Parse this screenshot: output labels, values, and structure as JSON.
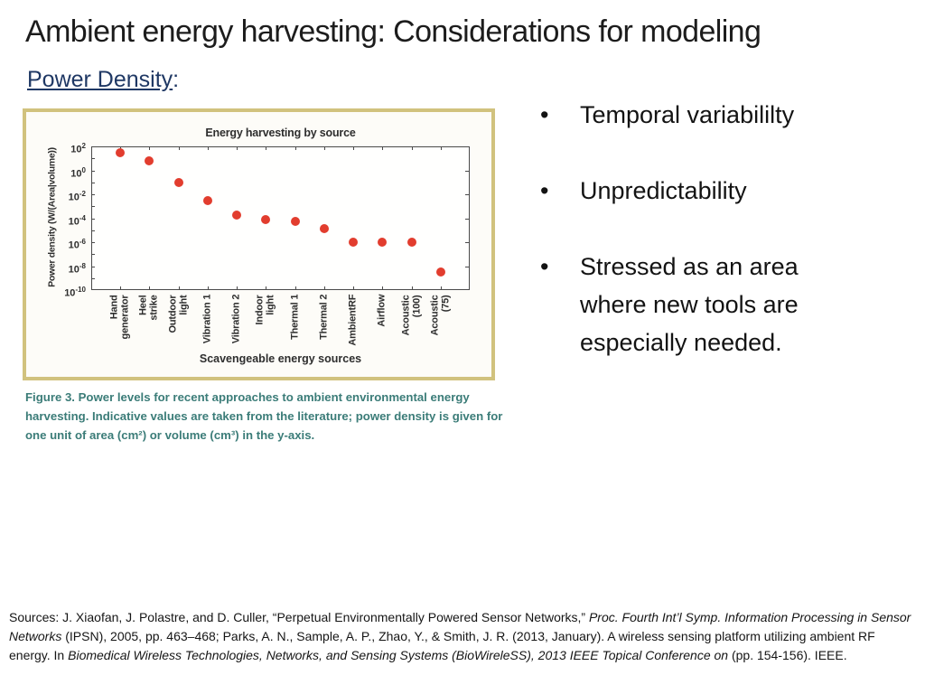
{
  "slide": {
    "title": "Ambient energy harvesting: Considerations for modeling",
    "subtitle": "Power Density",
    "subtitle_colon": ":",
    "bullet_glyph": "•"
  },
  "bullets": [
    "Temporal variabililty",
    "Unpredictability",
    "Stressed as an area where new tools are especially needed."
  ],
  "figure": {
    "caption": "Figure 3. Power levels for recent approaches to ambient environmental energy harvesting. Indicative values are taken from the literature; power density is given for one unit of area (cm²) or volume (cm³) in the y-axis.",
    "border_color": "#d1c27e",
    "caption_color": "#3b7c78"
  },
  "chart_data": {
    "type": "scatter",
    "title": "Energy harvesting by source",
    "xlabel": "Scavengeable energy sources",
    "ylabel": "Power density (W/(Area|volume))",
    "y_scale": "log",
    "ylim": [
      1e-10,
      100
    ],
    "y_tick_exponents": [
      2,
      0,
      -2,
      -4,
      -6,
      -8,
      -10
    ],
    "grid": false,
    "legend": "none",
    "point_color": "#e23d2e",
    "frame_color": "#4a4a4a",
    "categories": [
      "Hand generator",
      "Heel strike",
      "Outdoor light",
      "Vibration 1",
      "Vibration 2",
      "Indoor light",
      "Thermal 1",
      "Thermal 2",
      "AmbientRF",
      "Airflow",
      "Acoustic (100)",
      "Acoustic (75)"
    ],
    "category_label_lines": [
      [
        "Hand",
        "generator"
      ],
      [
        "Heel",
        "strike"
      ],
      [
        "Outdoor",
        "light"
      ],
      [
        "Vibration 1"
      ],
      [
        "Vibration 2"
      ],
      [
        "Indoor",
        "light"
      ],
      [
        "Thermal 1"
      ],
      [
        "Thermal 2"
      ],
      [
        "AmbientRF"
      ],
      [
        "Airflow"
      ],
      [
        "Acoustic",
        "(100)"
      ],
      [
        "Acoustic",
        "(75)"
      ]
    ],
    "values": [
      30,
      6,
      0.1,
      0.003,
      0.0002,
      8e-05,
      5e-05,
      1.3e-05,
      1e-06,
      1e-06,
      1e-06,
      3e-09
    ]
  },
  "sources": {
    "segments": [
      {
        "text": "Sources: J. Xiaofan, J. Polastre, and D. Culler, “Perpetual Environmentally Powered Sensor Networks,” ",
        "italic": false
      },
      {
        "text": "Proc. Fourth Int’l Symp. Information Processing in Sensor Networks",
        "italic": true
      },
      {
        "text": " (IPSN), 2005, pp. 463–468; Parks, A. N., Sample, A. P., Zhao, Y., & Smith, J. R. (2013, January). A wireless sensing platform utilizing ambient RF energy. In ",
        "italic": false
      },
      {
        "text": "Biomedical Wireless Technologies, Networks, and Sensing Systems (BioWireleSS), 2013 IEEE Topical Conference on",
        "italic": true
      },
      {
        "text": " (pp. 154-156). IEEE.",
        "italic": false
      }
    ]
  },
  "colors": {
    "title_text": "#1c1c1c",
    "subtitle_text": "#1f3864",
    "body_text": "#131313"
  }
}
